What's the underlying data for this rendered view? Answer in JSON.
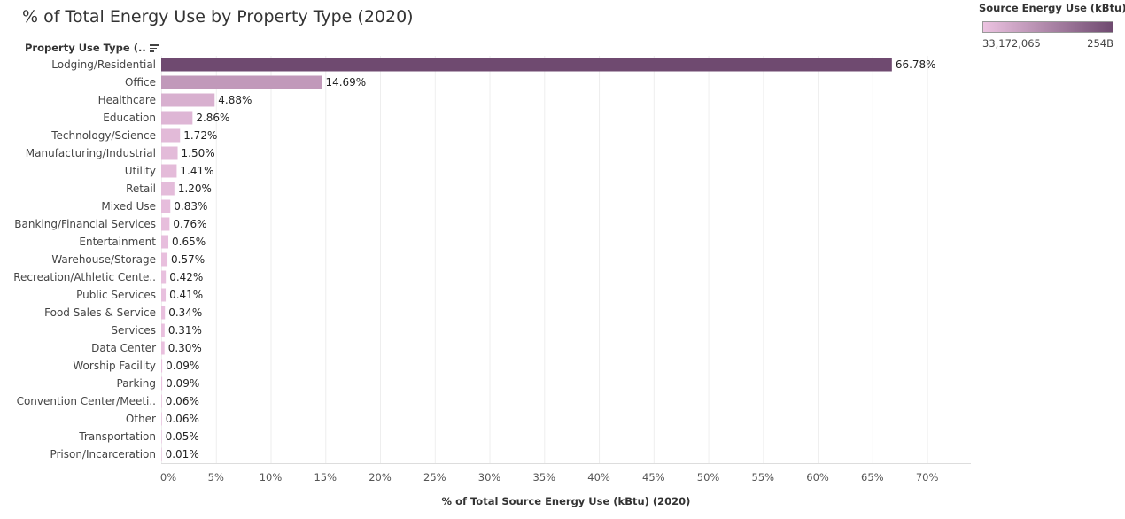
{
  "chart_data": {
    "type": "bar",
    "orientation": "horizontal",
    "title": "% of Total Energy Use by Property Type (2020)",
    "row_header": "Property Use Type (..",
    "xlabel": "% of Total Source Energy Use (kBtu) (2020)",
    "xlim": [
      0,
      74
    ],
    "x_ticks": [
      "0%",
      "5%",
      "10%",
      "15%",
      "20%",
      "25%",
      "30%",
      "35%",
      "40%",
      "45%",
      "50%",
      "55%",
      "60%",
      "65%",
      "70%"
    ],
    "x_tick_values": [
      0,
      5,
      10,
      15,
      20,
      25,
      30,
      35,
      40,
      45,
      50,
      55,
      60,
      65,
      70
    ],
    "grid": true,
    "categories": [
      "Lodging/Residential",
      "Office",
      "Healthcare",
      "Education",
      "Technology/Science",
      "Manufacturing/Industrial",
      "Utility",
      "Retail",
      "Mixed Use",
      "Banking/Financial Services",
      "Entertainment",
      "Warehouse/Storage",
      "Recreation/Athletic Cente..",
      "Public Services",
      "Food Sales & Service",
      "Services",
      "Data Center",
      "Worship Facility",
      "Parking",
      "Convention Center/Meeti..",
      "Other",
      "Transportation",
      "Prison/Incarceration"
    ],
    "values": [
      66.78,
      14.69,
      4.88,
      2.86,
      1.72,
      1.5,
      1.41,
      1.2,
      0.83,
      0.76,
      0.65,
      0.57,
      0.42,
      0.41,
      0.34,
      0.31,
      0.3,
      0.09,
      0.09,
      0.06,
      0.06,
      0.05,
      0.01
    ],
    "data_labels": [
      "66.78%",
      "14.69%",
      "4.88%",
      "2.86%",
      "1.72%",
      "1.50%",
      "1.41%",
      "1.20%",
      "0.83%",
      "0.76%",
      "0.65%",
      "0.57%",
      "0.42%",
      "0.41%",
      "0.34%",
      "0.31%",
      "0.30%",
      "0.09%",
      "0.09%",
      "0.06%",
      "0.06%",
      "0.05%",
      "0.01%"
    ],
    "color_legend": {
      "title": "Source Energy Use (kBtu) ...",
      "min_label": "33,172,065",
      "max_label": "254B",
      "color_low": "#ecc3e1",
      "color_high": "#6f4a70",
      "placement": "top-right"
    }
  }
}
